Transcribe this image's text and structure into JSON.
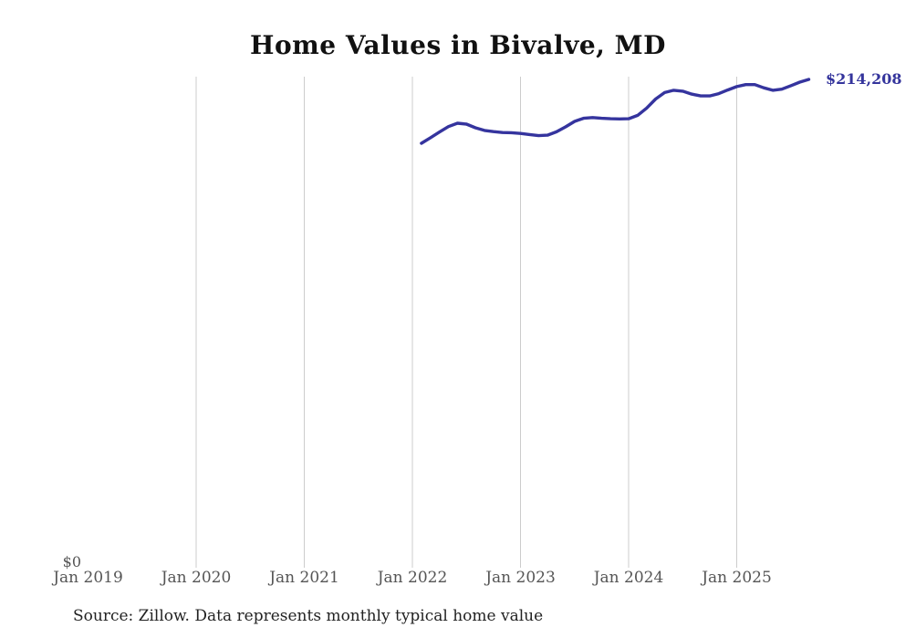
{
  "title": "Home Values in Bivalve, MD",
  "footer": {
    "source": "Source: Zillow. Data represents monthly typical home value"
  },
  "colors": {
    "background": "#ffffff",
    "line": "#35349e",
    "gridline": "#cccccc",
    "title_text": "#111111",
    "axis_label_text": "#555555",
    "end_label_text": "#34349c",
    "source_text": "#222222"
  },
  "chart_data": {
    "type": "line",
    "title": "Home Values in Bivalve, MD",
    "xlabel": "",
    "ylabel": "",
    "grid": "vertical-only",
    "legend": "none",
    "x_tick_labels": [
      "Jan 2019",
      "Jan 2020",
      "Jan 2021",
      "Jan 2022",
      "Jan 2023",
      "Jan 2024",
      "Jan 2025"
    ],
    "x_axis": {
      "first_tick": "Jan 2019",
      "last_data_month": "Sep 2025",
      "months_span": 80,
      "tick_month_indices": [
        0,
        12,
        24,
        36,
        48,
        60,
        72
      ],
      "gridline_month_indices": [
        12,
        24,
        36,
        48,
        60,
        72
      ]
    },
    "y_axis": {
      "min": 0,
      "min_label": "$0",
      "max_shown_value": 214208
    },
    "end_label": "$214,208",
    "final_value": 214208,
    "y_zero_label": "$0",
    "series": [
      {
        "name": "Monthly typical home value",
        "start_month": "2022-02",
        "start_month_index": 37,
        "values": [
          185900,
          188400,
          190900,
          193300,
          194800,
          194400,
          192800,
          191600,
          191100,
          190700,
          190600,
          190300,
          189800,
          189300,
          189500,
          191000,
          193200,
          195600,
          197000,
          197300,
          197000,
          196800,
          196700,
          196800,
          198300,
          201500,
          205500,
          208400,
          209400,
          209000,
          207700,
          206900,
          206900,
          207900,
          209500,
          211000,
          211900,
          211900,
          210500,
          209400,
          209900,
          211400,
          213000,
          214208
        ]
      }
    ]
  }
}
